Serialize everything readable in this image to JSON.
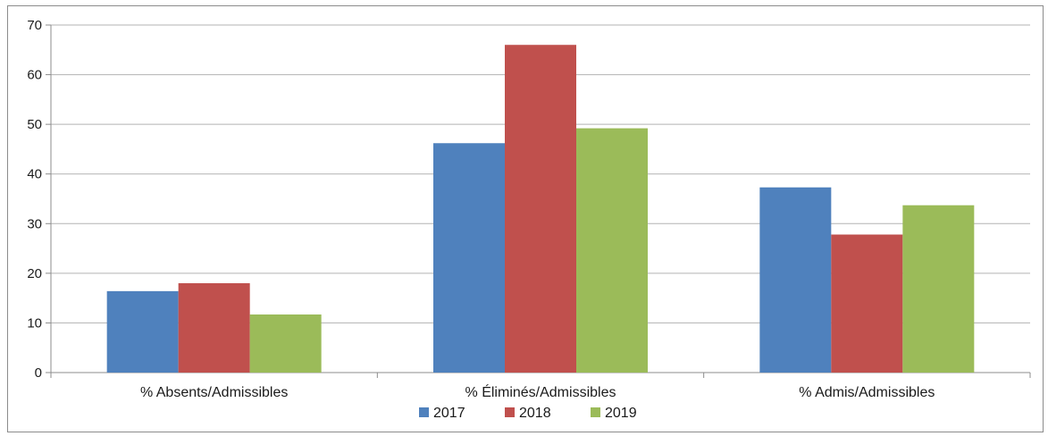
{
  "chart_data": {
    "type": "bar",
    "title": "",
    "xlabel": "",
    "ylabel": "",
    "ylim": [
      0,
      70
    ],
    "yticks": [
      0,
      10,
      20,
      30,
      40,
      50,
      60,
      70
    ],
    "grid": true,
    "legend_position": "bottom",
    "categories": [
      "% Absents/Admissibles",
      "% Éliminés/Admissibles",
      "% Admis/Admissibles"
    ],
    "series": [
      {
        "name": "2017",
        "color": "#4f81bd",
        "values": [
          16.4,
          46.2,
          37.3
        ]
      },
      {
        "name": "2018",
        "color": "#c0504d",
        "values": [
          18.0,
          66.0,
          27.8
        ]
      },
      {
        "name": "2019",
        "color": "#9bbb59",
        "values": [
          11.7,
          49.2,
          33.7
        ]
      }
    ]
  }
}
